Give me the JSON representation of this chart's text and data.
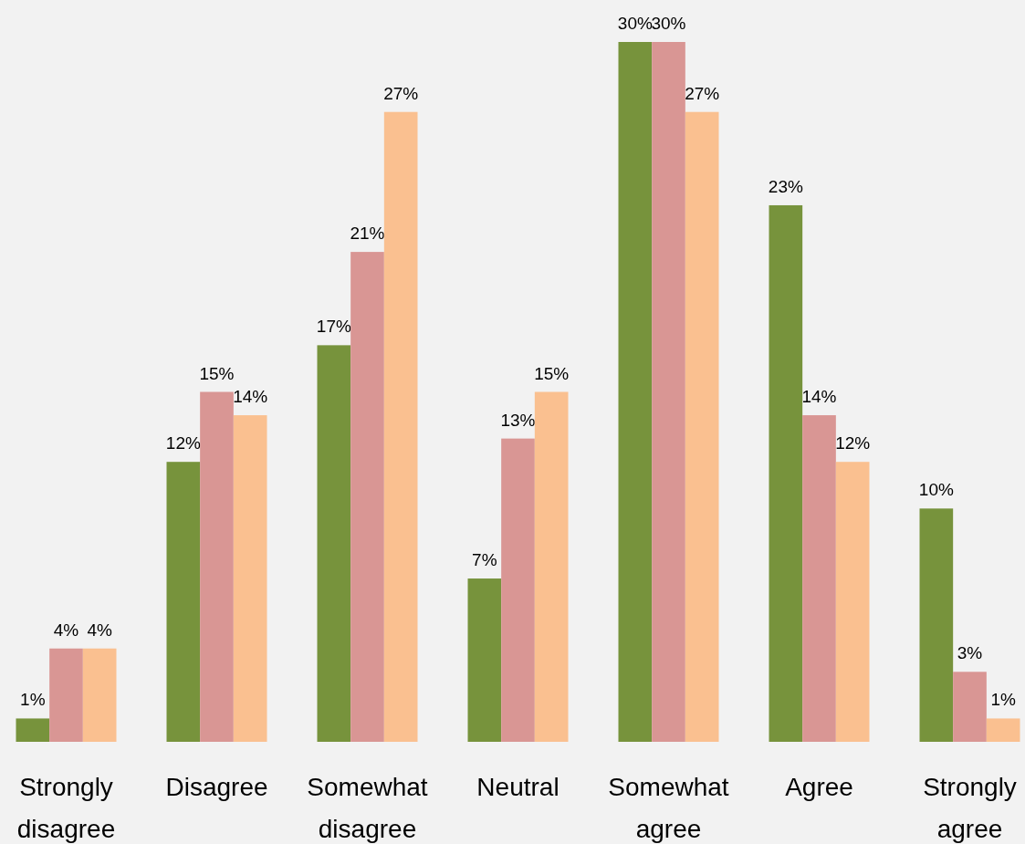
{
  "chart_data": {
    "type": "bar",
    "categories": [
      "Strongly disagree",
      "Disagree",
      "Somewhat disagree",
      "Neutral",
      "Somewhat agree",
      "Agree",
      "Strongly agree"
    ],
    "series": [
      {
        "color": "#77933c",
        "values": [
          1,
          12,
          17,
          7,
          30,
          23,
          10
        ],
        "value_labels": [
          "1%",
          "12%",
          "17%",
          "7%",
          "30%",
          "23%",
          "10%"
        ]
      },
      {
        "color": "#d99694",
        "values": [
          4,
          15,
          21,
          13,
          30,
          14,
          3
        ],
        "value_labels": [
          "4%",
          "15%",
          "21%",
          "13%",
          "30%",
          "14%",
          "3%"
        ]
      },
      {
        "color": "#fac090",
        "values": [
          4,
          14,
          27,
          15,
          27,
          12,
          1
        ],
        "value_labels": [
          "4%",
          "14%",
          "27%",
          "15%",
          "27%",
          "12%",
          "1%"
        ]
      }
    ],
    "grid": false
  }
}
